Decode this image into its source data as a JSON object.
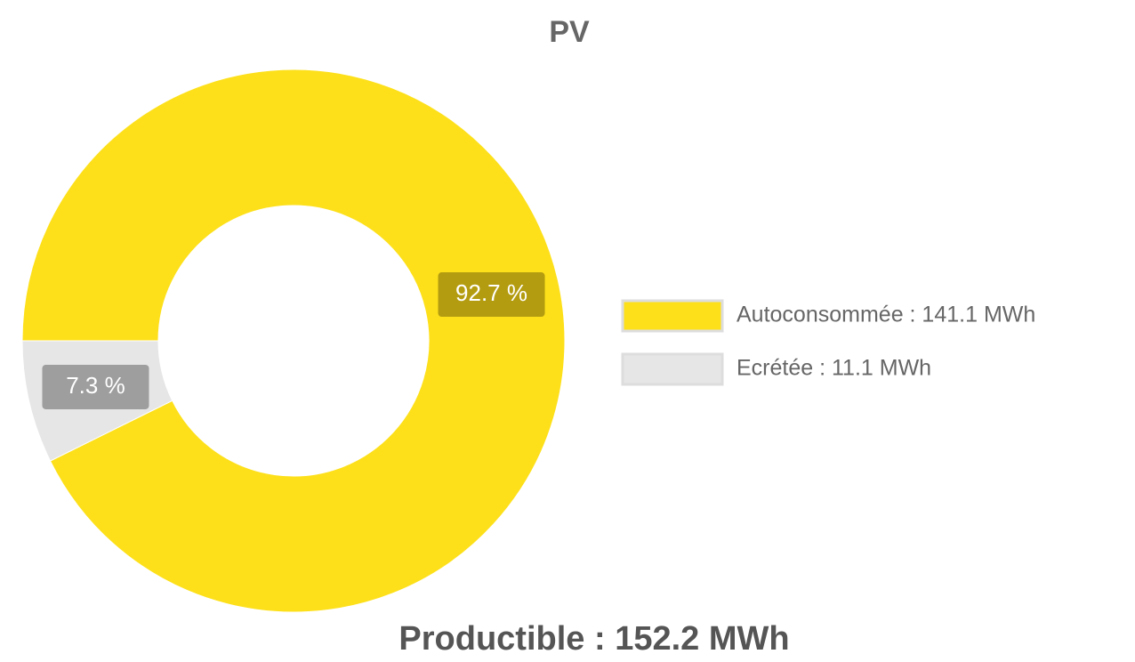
{
  "chart_data": {
    "type": "doughnut",
    "title": "PV",
    "categories": [
      "Autoconsommée : 141.1 MWh",
      "Ecrétée : 11.1 MWh"
    ],
    "values": [
      92.7,
      7.3
    ],
    "value_labels": [
      "92.7 %",
      "7.3 %"
    ],
    "colors": [
      "#fde01a",
      "#e6e6e6"
    ],
    "label_colors": [
      "#b39c10",
      "#9e9e9e"
    ],
    "legend": "right",
    "footer": "Productible : 152.2 MWh"
  }
}
